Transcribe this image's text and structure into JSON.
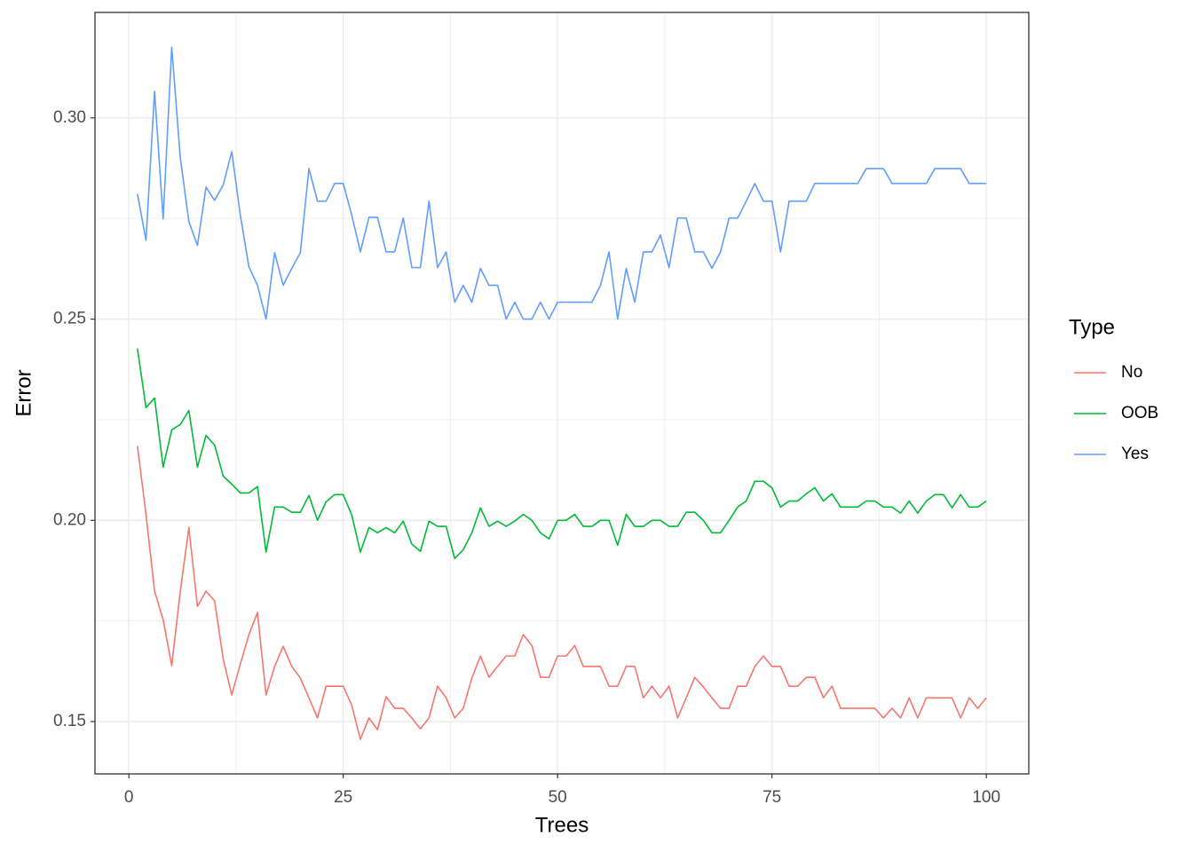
{
  "chart_data": {
    "type": "line",
    "x_label": "Trees",
    "y_label": "Error",
    "legend_title": "Type",
    "legend_position": "right",
    "x": [
      1,
      2,
      3,
      4,
      5,
      6,
      7,
      8,
      9,
      10,
      11,
      12,
      13,
      14,
      15,
      16,
      17,
      18,
      19,
      20,
      21,
      22,
      23,
      24,
      25,
      26,
      27,
      28,
      29,
      30,
      31,
      32,
      33,
      34,
      35,
      36,
      37,
      38,
      39,
      40,
      41,
      42,
      43,
      44,
      45,
      46,
      47,
      48,
      49,
      50,
      51,
      52,
      53,
      54,
      55,
      56,
      57,
      58,
      59,
      60,
      61,
      62,
      63,
      64,
      65,
      66,
      67,
      68,
      69,
      70,
      71,
      72,
      73,
      74,
      75,
      76,
      77,
      78,
      79,
      80,
      81,
      82,
      83,
      84,
      85,
      86,
      87,
      88,
      89,
      90,
      91,
      92,
      93,
      94,
      95,
      96,
      97,
      98,
      99,
      100
    ],
    "series": [
      {
        "name": "No",
        "color": "#F8766D",
        "values": [
          0.2185,
          0.2015,
          0.1824,
          0.1753,
          0.1639,
          0.1824,
          0.1982,
          0.1786,
          0.1824,
          0.18,
          0.1656,
          0.1566,
          0.1643,
          0.1716,
          0.1771,
          0.1566,
          0.1637,
          0.1687,
          0.1637,
          0.1608,
          0.1559,
          0.1509,
          0.1588,
          0.1588,
          0.1588,
          0.154,
          0.1456,
          0.1509,
          0.148,
          0.1562,
          0.1533,
          0.1533,
          0.1509,
          0.1482,
          0.1509,
          0.1588,
          0.1559,
          0.1509,
          0.1533,
          0.1608,
          0.1663,
          0.161,
          0.1637,
          0.1663,
          0.1663,
          0.1716,
          0.1689,
          0.161,
          0.161,
          0.1663,
          0.1663,
          0.1689,
          0.1637,
          0.1637,
          0.1637,
          0.1588,
          0.1588,
          0.1637,
          0.1637,
          0.1559,
          0.1588,
          0.1559,
          0.1588,
          0.1509,
          0.1559,
          0.161,
          0.1586,
          0.1559,
          0.1533,
          0.1533,
          0.1588,
          0.1588,
          0.1637,
          0.1663,
          0.1637,
          0.1637,
          0.1588,
          0.1588,
          0.161,
          0.161,
          0.1559,
          0.1588,
          0.1533,
          0.1533,
          0.1533,
          0.1533,
          0.1533,
          0.1509,
          0.1533,
          0.1509,
          0.1559,
          0.1509,
          0.1559,
          0.1559,
          0.1559,
          0.1559,
          0.1509,
          0.1559,
          0.1533,
          0.1559
        ]
      },
      {
        "name": "OOB",
        "color": "#00BA38",
        "values": [
          0.2427,
          0.228,
          0.2304,
          0.2132,
          0.2225,
          0.2238,
          0.2273,
          0.2132,
          0.2211,
          0.2187,
          0.211,
          0.209,
          0.2068,
          0.2068,
          0.2084,
          0.1921,
          0.2033,
          0.2033,
          0.202,
          0.202,
          0.2062,
          0.2,
          0.2046,
          0.2064,
          0.2064,
          0.2013,
          0.1921,
          0.1982,
          0.1969,
          0.1982,
          0.1969,
          0.1998,
          0.1941,
          0.1923,
          0.1998,
          0.1985,
          0.1985,
          0.1905,
          0.1927,
          0.1969,
          0.2031,
          0.1985,
          0.1998,
          0.1985,
          0.1998,
          0.2015,
          0.2,
          0.1969,
          0.1954,
          0.2,
          0.2,
          0.2015,
          0.1985,
          0.1985,
          0.2,
          0.2,
          0.1938,
          0.2015,
          0.1985,
          0.1985,
          0.2,
          0.2,
          0.1985,
          0.1985,
          0.202,
          0.202,
          0.2,
          0.1969,
          0.1969,
          0.2,
          0.2033,
          0.2048,
          0.2097,
          0.2097,
          0.2081,
          0.2033,
          0.2048,
          0.2048,
          0.2066,
          0.2081,
          0.2048,
          0.2066,
          0.2033,
          0.2033,
          0.2033,
          0.2048,
          0.2048,
          0.2033,
          0.2033,
          0.2018,
          0.2048,
          0.2018,
          0.2048,
          0.2064,
          0.2064,
          0.2031,
          0.2064,
          0.2033,
          0.2033,
          0.2048
        ]
      },
      {
        "name": "Yes",
        "color": "#619CFF",
        "values": [
          0.2811,
          0.2696,
          0.3066,
          0.2749,
          0.3176,
          0.2901,
          0.2742,
          0.2683,
          0.2828,
          0.2795,
          0.2833,
          0.2916,
          0.2758,
          0.263,
          0.2584,
          0.25,
          0.2665,
          0.2584,
          0.2626,
          0.2665,
          0.2874,
          0.2793,
          0.2793,
          0.2837,
          0.2837,
          0.2758,
          0.2667,
          0.2753,
          0.2753,
          0.2667,
          0.2667,
          0.2751,
          0.2628,
          0.2628,
          0.2793,
          0.2628,
          0.2667,
          0.2542,
          0.2584,
          0.2542,
          0.2626,
          0.2584,
          0.2584,
          0.25,
          0.2542,
          0.25,
          0.25,
          0.2542,
          0.25,
          0.2542,
          0.2542,
          0.2542,
          0.2542,
          0.2542,
          0.2584,
          0.2667,
          0.25,
          0.2626,
          0.2542,
          0.2667,
          0.2667,
          0.2709,
          0.2628,
          0.2751,
          0.2751,
          0.2667,
          0.2667,
          0.2626,
          0.2667,
          0.2751,
          0.2751,
          0.2793,
          0.2837,
          0.2793,
          0.2793,
          0.2667,
          0.2793,
          0.2793,
          0.2793,
          0.2837,
          0.2837,
          0.2837,
          0.2837,
          0.2837,
          0.2837,
          0.2874,
          0.2874,
          0.2874,
          0.2837,
          0.2837,
          0.2837,
          0.2837,
          0.2837,
          0.2874,
          0.2874,
          0.2874,
          0.2874,
          0.2837,
          0.2837,
          0.2837
        ]
      }
    ],
    "xlim": [
      -3.95,
      104.95
    ],
    "xticks": [
      0,
      25,
      50,
      75,
      100
    ],
    "minor_xticks": [
      12.5,
      37.5,
      62.5,
      87.5
    ],
    "ylim": [
      0.137,
      0.3262
    ],
    "yticks": [
      {
        "value": 0.15,
        "label": "0.15"
      },
      {
        "value": 0.2,
        "label": "0.20"
      },
      {
        "value": 0.25,
        "label": "0.25"
      },
      {
        "value": 0.3,
        "label": "0.30"
      }
    ],
    "minor_yticks": [
      0.175,
      0.225,
      0.275
    ],
    "grid": true
  }
}
